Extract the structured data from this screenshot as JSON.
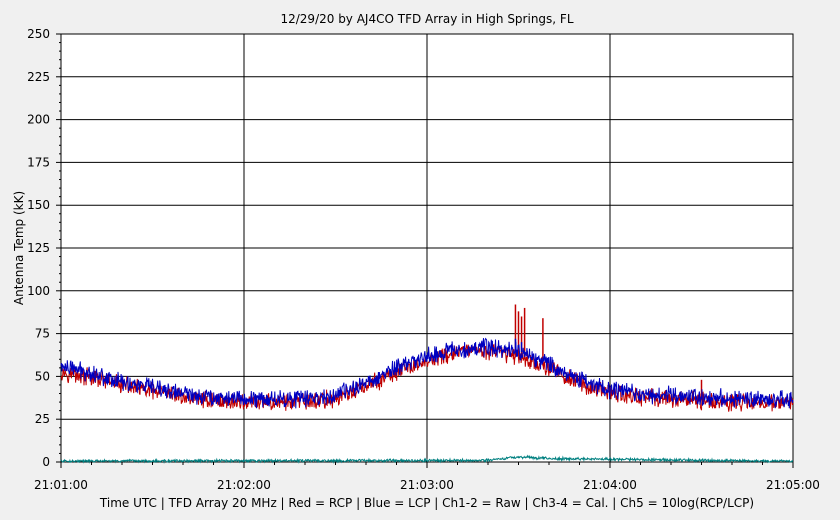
{
  "chart_data": {
    "type": "line",
    "title": "12/29/20  by  AJ4CO TFD Array  in  High Springs, FL",
    "ylabel": "Antenna Temp (kK)",
    "xlabel": "Time UTC | TFD Array 20 MHz | Red = RCP | Blue = LCP | Ch1-2 = Raw | Ch3-4 = Cal. | Ch5 = 10log(RCP/LCP)",
    "ylim": [
      0,
      250
    ],
    "xlim": [
      "21:01:00",
      "21:05:00"
    ],
    "y_ticks": [
      "0",
      "25",
      "50",
      "75",
      "100",
      "125",
      "150",
      "175",
      "200",
      "225",
      "250"
    ],
    "x_ticks": [
      "21:01:00",
      "21:02:00",
      "21:03:00",
      "21:04:00",
      "21:05:00"
    ],
    "grid": true,
    "colors": {
      "background": "#f0f0f0",
      "plot_area": "#ffffff",
      "rcp": "#c00000",
      "lcp": "#0000c0",
      "ratio": "#008080"
    },
    "series": [
      {
        "name": "Red = RCP",
        "x": [
          "21:01:00",
          "21:01:10",
          "21:01:20",
          "21:01:30",
          "21:01:40",
          "21:01:50",
          "21:02:00",
          "21:02:10",
          "21:02:20",
          "21:02:30",
          "21:02:40",
          "21:02:50",
          "21:03:00",
          "21:03:10",
          "21:03:20",
          "21:03:30",
          "21:03:40",
          "21:03:50",
          "21:04:00",
          "21:04:10",
          "21:04:20",
          "21:04:30",
          "21:04:40",
          "21:04:50",
          "21:05:00"
        ],
        "values": [
          53,
          49,
          45,
          41,
          38,
          36,
          35,
          35,
          35,
          37,
          44,
          52,
          59,
          64,
          65,
          62,
          55,
          46,
          40,
          38,
          37,
          36,
          35,
          35,
          34
        ],
        "spikes": [
          {
            "x": "21:03:29",
            "value": 92
          },
          {
            "x": "21:03:30",
            "value": 88
          },
          {
            "x": "21:03:31",
            "value": 85
          },
          {
            "x": "21:03:32",
            "value": 90
          },
          {
            "x": "21:03:38",
            "value": 84
          },
          {
            "x": "21:04:30",
            "value": 48
          }
        ]
      },
      {
        "name": "Blue = LCP",
        "x": [
          "21:01:00",
          "21:01:10",
          "21:01:20",
          "21:01:30",
          "21:01:40",
          "21:01:50",
          "21:02:00",
          "21:02:10",
          "21:02:20",
          "21:02:30",
          "21:02:40",
          "21:02:50",
          "21:03:00",
          "21:03:10",
          "21:03:20",
          "21:03:30",
          "21:03:40",
          "21:03:50",
          "21:04:00",
          "21:04:10",
          "21:04:20",
          "21:04:30",
          "21:04:40",
          "21:04:50",
          "21:05:00"
        ],
        "values": [
          56,
          52,
          47,
          43,
          40,
          38,
          37,
          37,
          37,
          39,
          46,
          55,
          62,
          66,
          67,
          65,
          57,
          48,
          42,
          40,
          39,
          38,
          37,
          37,
          36
        ],
        "spikes": [
          {
            "x": "21:03:29",
            "value": 72
          },
          {
            "x": "21:03:31",
            "value": 70
          }
        ]
      },
      {
        "name": "Ch5 = 10log(RCP/LCP)",
        "x": [
          "21:01:00",
          "21:03:20",
          "21:03:30",
          "21:03:40",
          "21:05:00"
        ],
        "values": [
          0.5,
          1,
          3,
          2,
          0.5
        ]
      }
    ]
  }
}
